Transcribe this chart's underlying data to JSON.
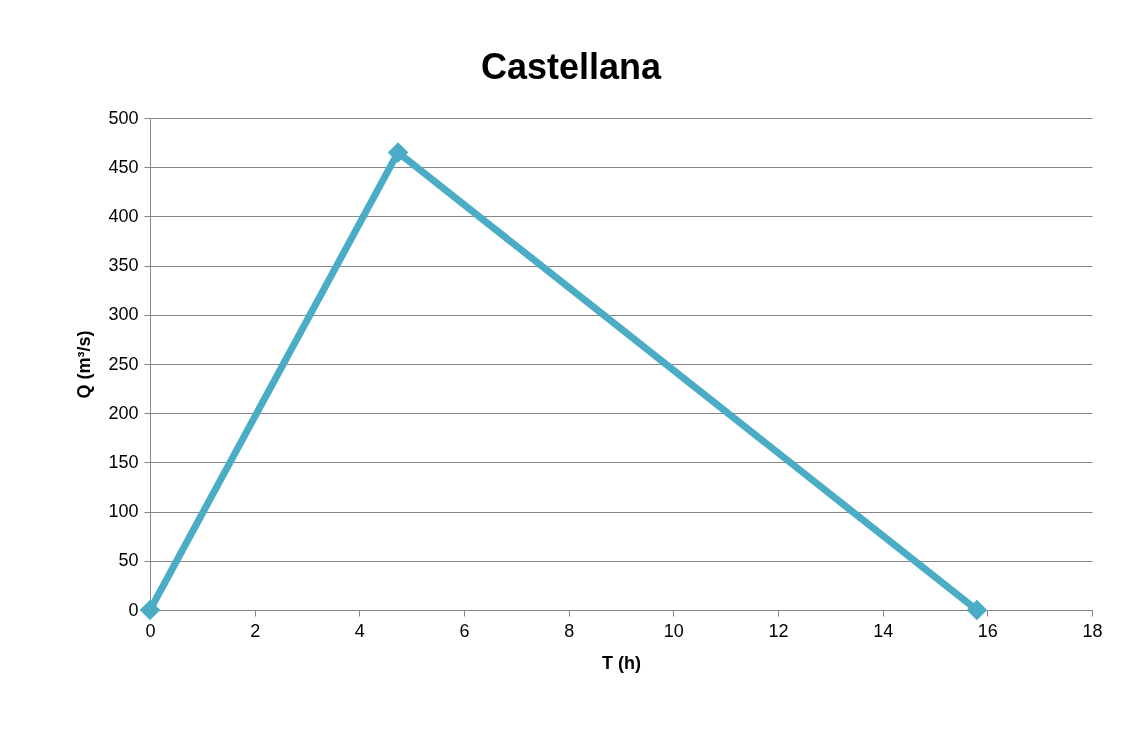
{
  "chart_data": {
    "type": "line",
    "title": "Castellana",
    "xlabel": "T (h)",
    "ylabel": "Q (m³/s)",
    "x": [
      0,
      4.74,
      15.8
    ],
    "series": [
      {
        "color": "#4bacc6",
        "values": [
          0,
          465,
          0
        ]
      }
    ],
    "xlim": [
      0,
      18
    ],
    "xticks": [
      0,
      2,
      4,
      6,
      8,
      10,
      12,
      14,
      16,
      18
    ],
    "ylim": [
      0,
      500
    ],
    "yticks": [
      0,
      50,
      100,
      150,
      200,
      250,
      300,
      350,
      400,
      450,
      500
    ],
    "grid": "y",
    "legend": false,
    "marker": "diamond",
    "line_style": "solid"
  }
}
